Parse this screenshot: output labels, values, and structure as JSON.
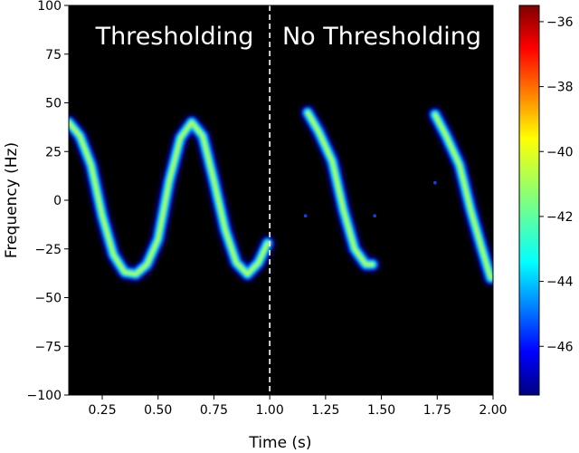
{
  "chart_data": {
    "type": "heatmap",
    "xlabel": "Time (s)",
    "ylabel": "Frequency (Hz)",
    "xlim": [
      0.1,
      2.0
    ],
    "ylim": [
      -100,
      100
    ],
    "xticks": [
      "0.25",
      "0.50",
      "0.75",
      "1.00",
      "1.25",
      "1.50",
      "1.75",
      "2.00"
    ],
    "yticks": [
      "100",
      "75",
      "50",
      "25",
      "0",
      "−25",
      "−50",
      "−75",
      "−100"
    ],
    "divider_x": 1.0,
    "annotations": [
      "Thresholding",
      "No Thresholding"
    ],
    "background": "#000000",
    "colorbar": {
      "range": [
        -47.5,
        -35.5
      ],
      "ticks": [
        "−36",
        "−38",
        "−40",
        "−42",
        "−44",
        "−46"
      ],
      "colormap": "jet"
    },
    "regions": {
      "thresholding": {
        "description": "sinusoidal chirp ridge, continuous",
        "ridge": [
          {
            "t": 0.1,
            "f": 40
          },
          {
            "t": 0.15,
            "f": 33
          },
          {
            "t": 0.2,
            "f": 18
          },
          {
            "t": 0.25,
            "f": -8
          },
          {
            "t": 0.3,
            "f": -28
          },
          {
            "t": 0.35,
            "f": -37
          },
          {
            "t": 0.4,
            "f": -38
          },
          {
            "t": 0.45,
            "f": -33
          },
          {
            "t": 0.5,
            "f": -20
          },
          {
            "t": 0.55,
            "f": 10
          },
          {
            "t": 0.6,
            "f": 32
          },
          {
            "t": 0.65,
            "f": 40
          },
          {
            "t": 0.7,
            "f": 33
          },
          {
            "t": 0.75,
            "f": 10
          },
          {
            "t": 0.8,
            "f": -15
          },
          {
            "t": 0.85,
            "f": -32
          },
          {
            "t": 0.9,
            "f": -38
          },
          {
            "t": 0.95,
            "f": -32
          },
          {
            "t": 0.99,
            "f": -22
          }
        ]
      },
      "no_thresholding": {
        "description": "only downward-sweeping segments visible",
        "segments": [
          [
            {
              "t": 1.17,
              "f": 45
            },
            {
              "t": 1.22,
              "f": 35
            },
            {
              "t": 1.28,
              "f": 20
            },
            {
              "t": 1.33,
              "f": -5
            },
            {
              "t": 1.38,
              "f": -25
            },
            {
              "t": 1.43,
              "f": -33
            },
            {
              "t": 1.46,
              "f": -33
            }
          ],
          [
            {
              "t": 1.74,
              "f": 44
            },
            {
              "t": 1.79,
              "f": 33
            },
            {
              "t": 1.85,
              "f": 18
            },
            {
              "t": 1.9,
              "f": -5
            },
            {
              "t": 1.95,
              "f": -25
            },
            {
              "t": 1.99,
              "f": -40
            }
          ]
        ],
        "specks": [
          {
            "t": 1.16,
            "f": -8
          },
          {
            "t": 1.47,
            "f": -8
          },
          {
            "t": 1.74,
            "f": 9
          }
        ]
      }
    }
  }
}
